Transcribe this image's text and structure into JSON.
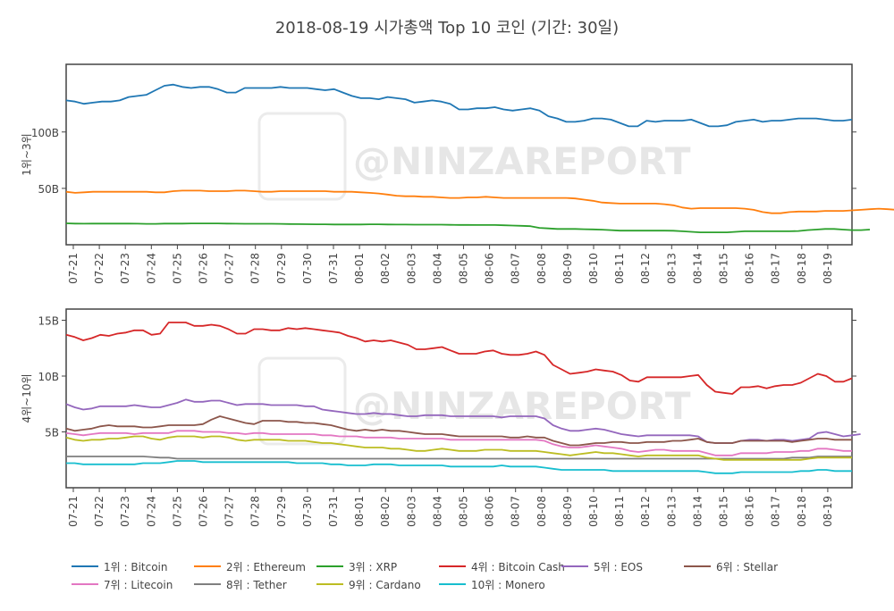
{
  "title": "2018-08-19 시가총액 Top 10 코인 (기간: 30일)",
  "watermark": "@NINZAREPORT",
  "chart_data": [
    {
      "type": "line",
      "panel": "top",
      "ylabel": "1위~3위",
      "ylim": [
        0,
        160
      ],
      "yticks": [
        {
          "value": 50,
          "label": "50B"
        },
        {
          "value": 100,
          "label": "100B"
        }
      ],
      "x_ticks": [
        "07-21",
        "07-22",
        "07-23",
        "07-24",
        "07-25",
        "07-26",
        "07-27",
        "07-28",
        "07-29",
        "07-30",
        "07-31",
        "08-01",
        "08-02",
        "08-03",
        "08-04",
        "08-05",
        "08-06",
        "08-07",
        "08-08",
        "08-09",
        "08-10",
        "08-11",
        "08-12",
        "08-13",
        "08-14",
        "08-15",
        "08-16",
        "08-17",
        "08-18",
        "08-19"
      ],
      "series": [
        {
          "name": "1위 : Bitcoin",
          "color": "#1f77b4",
          "values": [
            128,
            127,
            125,
            126,
            127,
            127,
            128,
            131,
            132,
            133,
            137,
            141,
            142,
            140,
            139,
            140,
            140,
            138,
            135,
            135,
            139,
            139,
            139,
            139,
            140,
            139,
            139,
            139,
            138,
            137,
            138,
            135,
            132,
            130,
            130,
            129,
            131,
            130,
            129,
            126,
            127,
            128,
            127,
            125,
            120,
            120,
            121,
            121,
            122,
            120,
            119,
            120,
            121,
            119,
            114,
            112,
            109,
            109,
            110,
            112,
            112,
            111,
            108,
            105,
            105,
            110,
            109,
            110,
            110,
            110,
            111,
            108,
            105,
            105,
            106,
            109,
            110,
            111,
            109,
            110,
            110,
            111,
            112,
            112,
            112,
            111,
            110,
            110,
            111
          ]
        },
        {
          "name": "2위 : Ethereum",
          "color": "#ff7f0e",
          "values": [
            47,
            46,
            46.5,
            47,
            47,
            47,
            47,
            47,
            47,
            47,
            46.5,
            46.5,
            47.5,
            48,
            48,
            48,
            47.5,
            47.5,
            47.5,
            48,
            48,
            47.5,
            47,
            47,
            47.5,
            47.5,
            47.5,
            47.5,
            47.5,
            47.5,
            47,
            47,
            47,
            46.5,
            46,
            45.5,
            44.5,
            43.5,
            43,
            43,
            42.5,
            42.5,
            42,
            41.5,
            41.5,
            42,
            42,
            42.5,
            42,
            41.5,
            41.5,
            41.5,
            41.5,
            41.5,
            41.5,
            41.5,
            41.5,
            41,
            40,
            39,
            37.5,
            37,
            36.5,
            36.5,
            36.5,
            36.5,
            36.5,
            36,
            35,
            33,
            32,
            32.5,
            32.5,
            32.5,
            32.5,
            32.5,
            32,
            31,
            29,
            28,
            28,
            29,
            29.5,
            29.5,
            29.5,
            30,
            30,
            30,
            30.5,
            31,
            31.5,
            32,
            31.5,
            31,
            30,
            30,
            30.5
          ]
        },
        {
          "name": "3위 : XRP",
          "color": "#2ca02c",
          "values": [
            19,
            18.8,
            18.7,
            18.8,
            18.8,
            18.8,
            18.8,
            18.8,
            18.7,
            18.5,
            18.5,
            18.8,
            18.8,
            18.8,
            18.9,
            18.9,
            18.9,
            18.9,
            18.8,
            18.7,
            18.6,
            18.6,
            18.6,
            18.6,
            18.5,
            18.4,
            18.3,
            18.2,
            18.1,
            18.1,
            18,
            18,
            18,
            18,
            18.1,
            18.1,
            18,
            17.9,
            17.9,
            17.8,
            17.8,
            17.8,
            17.8,
            17.7,
            17.6,
            17.6,
            17.5,
            17.5,
            17.5,
            17.3,
            17,
            16.8,
            16.5,
            15,
            14.5,
            14,
            14,
            14,
            13.8,
            13.6,
            13.4,
            13,
            12.5,
            12.5,
            12.5,
            12.5,
            12.5,
            12.5,
            12.4,
            12,
            11.5,
            11,
            11,
            11,
            11,
            11.5,
            12,
            12,
            12,
            12,
            12,
            12,
            12.2,
            13,
            13.5,
            14,
            14,
            13.5,
            13,
            13,
            13.5
          ]
        }
      ]
    },
    {
      "type": "line",
      "panel": "bottom",
      "ylabel": "4위~10위",
      "ylim": [
        0,
        16
      ],
      "yticks": [
        {
          "value": 5,
          "label": "5B"
        },
        {
          "value": 10,
          "label": "10B"
        },
        {
          "value": 15,
          "label": "15B"
        }
      ],
      "x_ticks": [
        "07-21",
        "07-22",
        "07-23",
        "07-24",
        "07-25",
        "07-26",
        "07-27",
        "07-28",
        "07-29",
        "07-30",
        "07-31",
        "08-01",
        "08-02",
        "08-03",
        "08-04",
        "08-05",
        "08-06",
        "08-07",
        "08-08",
        "08-09",
        "08-10",
        "08-11",
        "08-12",
        "08-13",
        "08-14",
        "08-15",
        "08-16",
        "08-17",
        "08-18",
        "08-19"
      ],
      "series": [
        {
          "name": "4위 : Bitcoin Cash",
          "color": "#d62728",
          "values": [
            13.7,
            13.5,
            13.2,
            13.4,
            13.7,
            13.6,
            13.8,
            13.9,
            14.1,
            14.1,
            13.7,
            13.8,
            14.8,
            14.8,
            14.8,
            14.5,
            14.5,
            14.6,
            14.5,
            14.2,
            13.8,
            13.8,
            14.2,
            14.2,
            14.1,
            14.1,
            14.3,
            14.2,
            14.3,
            14.2,
            14.1,
            14,
            13.9,
            13.6,
            13.4,
            13.1,
            13.2,
            13.1,
            13.2,
            13,
            12.8,
            12.4,
            12.4,
            12.5,
            12.6,
            12.3,
            12,
            12,
            12,
            12.2,
            12.3,
            12,
            11.9,
            11.9,
            12,
            12.2,
            11.9,
            11,
            10.6,
            10.2,
            10.3,
            10.4,
            10.6,
            10.5,
            10.4,
            10.1,
            9.6,
            9.5,
            9.9,
            9.9,
            9.9,
            9.9,
            9.9,
            10,
            10.1,
            9.2,
            8.6,
            8.5,
            8.4,
            9,
            9,
            9.1,
            8.9,
            9.1,
            9.2,
            9.2,
            9.4,
            9.8,
            10.2,
            10,
            9.5,
            9.5,
            9.8
          ]
        },
        {
          "name": "5위 : EOS",
          "color": "#9467bd",
          "values": [
            7.5,
            7.2,
            7,
            7.1,
            7.3,
            7.3,
            7.3,
            7.3,
            7.4,
            7.3,
            7.2,
            7.2,
            7.4,
            7.6,
            7.9,
            7.7,
            7.7,
            7.8,
            7.8,
            7.6,
            7.4,
            7.5,
            7.5,
            7.5,
            7.4,
            7.4,
            7.4,
            7.4,
            7.3,
            7.3,
            7,
            6.9,
            6.8,
            6.7,
            6.6,
            6.6,
            6.7,
            6.6,
            6.6,
            6.5,
            6.4,
            6.4,
            6.5,
            6.5,
            6.5,
            6.4,
            6.4,
            6.4,
            6.4,
            6.4,
            6.4,
            6.3,
            6.4,
            6.4,
            6.4,
            6.4,
            6.2,
            5.6,
            5.3,
            5.1,
            5.1,
            5.2,
            5.3,
            5.2,
            5,
            4.8,
            4.7,
            4.6,
            4.7,
            4.7,
            4.7,
            4.7,
            4.7,
            4.7,
            4.6,
            4.1,
            4,
            4,
            4,
            4.2,
            4.3,
            4.3,
            4.2,
            4.3,
            4.3,
            4.2,
            4.3,
            4.4,
            4.9,
            5,
            4.8,
            4.6,
            4.7,
            4.8
          ]
        },
        {
          "name": "6위 : Stellar",
          "color": "#8c564b",
          "values": [
            5.3,
            5.1,
            5.2,
            5.3,
            5.5,
            5.6,
            5.5,
            5.5,
            5.5,
            5.4,
            5.4,
            5.5,
            5.6,
            5.6,
            5.6,
            5.6,
            5.7,
            6.1,
            6.4,
            6.2,
            6,
            5.8,
            5.7,
            6,
            6,
            6,
            5.9,
            5.9,
            5.8,
            5.8,
            5.7,
            5.6,
            5.4,
            5.2,
            5.1,
            5.2,
            5.1,
            5.2,
            5.1,
            5.1,
            5,
            4.9,
            4.8,
            4.8,
            4.8,
            4.7,
            4.6,
            4.6,
            4.6,
            4.6,
            4.6,
            4.6,
            4.5,
            4.5,
            4.6,
            4.5,
            4.5,
            4.2,
            4,
            3.8,
            3.8,
            3.9,
            4,
            4,
            4.1,
            4.1,
            4,
            4,
            4.1,
            4.1,
            4.1,
            4.2,
            4.2,
            4.3,
            4.4,
            4.1,
            4,
            4,
            4,
            4.2,
            4.2,
            4.2,
            4.2,
            4.2,
            4.2,
            4.1,
            4.2,
            4.3,
            4.4,
            4.4,
            4.3,
            4.3,
            4.3
          ]
        },
        {
          "name": "7위 : Litecoin",
          "color": "#e377c2",
          "values": [
            4.9,
            4.8,
            4.7,
            4.8,
            4.9,
            4.9,
            4.9,
            4.9,
            4.8,
            4.9,
            4.9,
            4.9,
            4.9,
            5.1,
            5.1,
            5.1,
            5,
            5,
            5,
            4.9,
            4.9,
            4.8,
            4.9,
            4.9,
            4.8,
            4.8,
            4.8,
            4.8,
            4.8,
            4.8,
            4.7,
            4.7,
            4.6,
            4.6,
            4.6,
            4.5,
            4.5,
            4.5,
            4.5,
            4.4,
            4.4,
            4.4,
            4.4,
            4.4,
            4.4,
            4.3,
            4.3,
            4.3,
            4.3,
            4.3,
            4.3,
            4.3,
            4.3,
            4.3,
            4.3,
            4.3,
            4.2,
            3.9,
            3.7,
            3.6,
            3.6,
            3.7,
            3.8,
            3.7,
            3.6,
            3.5,
            3.3,
            3.2,
            3.3,
            3.4,
            3.4,
            3.3,
            3.3,
            3.3,
            3.3,
            3.1,
            2.9,
            2.9,
            2.9,
            3.1,
            3.1,
            3.1,
            3.1,
            3.2,
            3.2,
            3.2,
            3.3,
            3.3,
            3.5,
            3.5,
            3.4,
            3.3,
            3.3
          ]
        },
        {
          "name": "8위 : Tether",
          "color": "#7f7f7f",
          "values": [
            2.8,
            2.8,
            2.8,
            2.8,
            2.8,
            2.8,
            2.8,
            2.8,
            2.8,
            2.8,
            2.75,
            2.7,
            2.7,
            2.6,
            2.6,
            2.6,
            2.6,
            2.6,
            2.6,
            2.6,
            2.6,
            2.6,
            2.6,
            2.6,
            2.6,
            2.6,
            2.6,
            2.6,
            2.6,
            2.6,
            2.6,
            2.6,
            2.6,
            2.6,
            2.6,
            2.6,
            2.6,
            2.6,
            2.6,
            2.6,
            2.6,
            2.6,
            2.6,
            2.6,
            2.6,
            2.6,
            2.6,
            2.6,
            2.6,
            2.6,
            2.6,
            2.6,
            2.6,
            2.6,
            2.6,
            2.6,
            2.6,
            2.6,
            2.6,
            2.6,
            2.6,
            2.6,
            2.6,
            2.6,
            2.6,
            2.6,
            2.6,
            2.6,
            2.6,
            2.6,
            2.6,
            2.6,
            2.6,
            2.6,
            2.6,
            2.6,
            2.6,
            2.6,
            2.6,
            2.6,
            2.6,
            2.6,
            2.6,
            2.6,
            2.6,
            2.7,
            2.7,
            2.7,
            2.8,
            2.8,
            2.8,
            2.8,
            2.8
          ]
        },
        {
          "name": "9위 : Cardano",
          "color": "#bcbd22",
          "values": [
            4.5,
            4.3,
            4.2,
            4.3,
            4.3,
            4.4,
            4.4,
            4.5,
            4.6,
            4.6,
            4.4,
            4.3,
            4.5,
            4.6,
            4.6,
            4.6,
            4.5,
            4.6,
            4.6,
            4.5,
            4.3,
            4.2,
            4.3,
            4.3,
            4.3,
            4.3,
            4.2,
            4.2,
            4.2,
            4.1,
            4,
            4,
            3.9,
            3.8,
            3.7,
            3.6,
            3.6,
            3.6,
            3.5,
            3.5,
            3.4,
            3.3,
            3.3,
            3.4,
            3.5,
            3.4,
            3.3,
            3.3,
            3.3,
            3.4,
            3.4,
            3.4,
            3.3,
            3.3,
            3.3,
            3.3,
            3.2,
            3.1,
            3,
            2.9,
            3,
            3.1,
            3.2,
            3.1,
            3.1,
            3,
            2.9,
            2.8,
            2.9,
            2.9,
            2.9,
            2.9,
            2.9,
            2.9,
            2.9,
            2.7,
            2.6,
            2.5,
            2.5,
            2.5,
            2.5,
            2.5,
            2.5,
            2.5,
            2.5,
            2.5,
            2.5,
            2.6,
            2.7,
            2.7,
            2.7,
            2.7,
            2.7
          ]
        },
        {
          "name": "10위 : Monero",
          "color": "#17becf",
          "values": [
            2.2,
            2.2,
            2.1,
            2.1,
            2.1,
            2.1,
            2.1,
            2.1,
            2.1,
            2.2,
            2.2,
            2.2,
            2.3,
            2.4,
            2.4,
            2.4,
            2.3,
            2.3,
            2.3,
            2.3,
            2.3,
            2.3,
            2.3,
            2.3,
            2.3,
            2.3,
            2.3,
            2.2,
            2.2,
            2.2,
            2.2,
            2.1,
            2.1,
            2,
            2,
            2,
            2.1,
            2.1,
            2.1,
            2,
            2,
            2,
            2,
            2,
            2,
            1.9,
            1.9,
            1.9,
            1.9,
            1.9,
            1.9,
            2,
            1.9,
            1.9,
            1.9,
            1.9,
            1.8,
            1.7,
            1.6,
            1.6,
            1.6,
            1.6,
            1.6,
            1.6,
            1.5,
            1.5,
            1.5,
            1.5,
            1.5,
            1.5,
            1.5,
            1.5,
            1.5,
            1.5,
            1.5,
            1.4,
            1.3,
            1.3,
            1.3,
            1.4,
            1.4,
            1.4,
            1.4,
            1.4,
            1.4,
            1.4,
            1.5,
            1.5,
            1.6,
            1.6,
            1.5,
            1.5,
            1.5
          ]
        }
      ]
    }
  ]
}
